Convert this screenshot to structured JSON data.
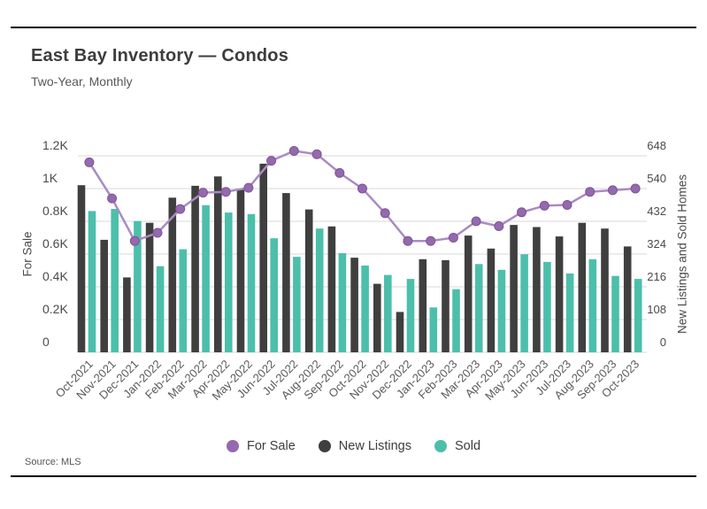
{
  "header": {
    "title": "East Bay Inventory — Condos",
    "subtitle": "Two-Year, Monthly"
  },
  "footer": {
    "source": "Source: MLS"
  },
  "legend": [
    {
      "label": "For Sale",
      "color": "#9569ae"
    },
    {
      "label": "New Listings",
      "color": "#3f3f3f"
    },
    {
      "label": "Sold",
      "color": "#4cbfab"
    }
  ],
  "chart_data": {
    "type": "bar",
    "subtype": "grouped bars with overlaid line (dual axis)",
    "title": "East Bay Inventory — Condos",
    "subtitle": "Two-Year, Monthly",
    "categories": [
      "Oct-2021",
      "Nov-2021",
      "Dec-2021",
      "Jan-2022",
      "Feb-2022",
      "Mar-2022",
      "Apr-2022",
      "May-2022",
      "Jun-2022",
      "Jul-2022",
      "Aug-2022",
      "Sep-2022",
      "Oct-2022",
      "Nov-2022",
      "Dec-2022",
      "Jan-2023",
      "Feb-2023",
      "Mar-2023",
      "Apr-2023",
      "May-2023",
      "Jun-2023",
      "Jul-2023",
      "Aug-2023",
      "Sep-2023",
      "Oct-2023"
    ],
    "series": [
      {
        "name": "For Sale",
        "type": "line",
        "axis": "left",
        "color": "#9569ae",
        "line_color": "#a98bc3",
        "values": [
          1160,
          940,
          680,
          730,
          875,
          975,
          980,
          1005,
          1170,
          1230,
          1210,
          1095,
          1000,
          850,
          680,
          680,
          700,
          800,
          770,
          855,
          895,
          900,
          980,
          990,
          1000
        ]
      },
      {
        "name": "New Listings",
        "type": "bar",
        "axis": "right",
        "color": "#3f3f3f",
        "values": [
          551,
          371,
          247,
          427,
          510,
          549,
          580,
          536,
          622,
          525,
          471,
          415,
          312,
          226,
          133,
          307,
          304,
          385,
          342,
          420,
          413,
          382,
          427,
          408,
          349
        ]
      },
      {
        "name": "Sold",
        "type": "bar",
        "axis": "right",
        "color": "#4cbfab",
        "values": [
          466,
          473,
          433,
          284,
          340,
          485,
          461,
          456,
          376,
          315,
          408,
          327,
          286,
          255,
          242,
          148,
          208,
          291,
          272,
          323,
          298,
          260,
          307,
          252,
          242
        ]
      }
    ],
    "left_axis": {
      "label": "For Sale",
      "ticks": [
        "0",
        "0.2K",
        "0.4K",
        "0.6K",
        "0.8K",
        "1K",
        "1.2K"
      ],
      "tick_values": [
        0,
        200,
        400,
        600,
        800,
        1000,
        1200
      ],
      "range": [
        0,
        1200
      ]
    },
    "right_axis": {
      "label": "New Listings and Sold Homes",
      "ticks": [
        "0",
        "108",
        "216",
        "324",
        "432",
        "540",
        "648"
      ],
      "tick_values": [
        0,
        108,
        216,
        324,
        432,
        540,
        648
      ],
      "range": [
        0,
        648
      ]
    },
    "grid": true,
    "gridline_color": "#d9d9d9",
    "legend_position": "bottom"
  }
}
